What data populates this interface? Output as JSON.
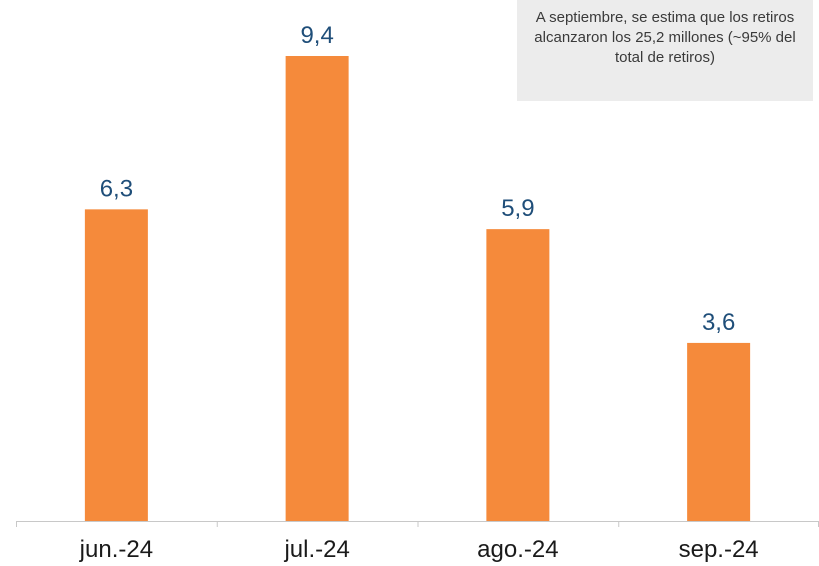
{
  "chart_data": {
    "type": "bar",
    "categories": [
      "jun.-24",
      "jul.-24",
      "ago.-24",
      "sep.-24"
    ],
    "values": [
      6.3,
      9.4,
      5.9,
      3.6
    ],
    "value_labels": [
      "6,3",
      "9,4",
      "5,9",
      "3,6"
    ],
    "ylim": [
      0,
      10
    ],
    "grid": false,
    "legend": "none",
    "annotation": "A septiembre, se estima que los retiros alcanzaron los 25,2 millones (~95% del total de retiros)"
  },
  "colors": {
    "bar": "#f58a3b",
    "data_label": "#1f4e79",
    "tick_label": "#1a1a1a",
    "axis": "#c8c8c8",
    "annotation_bg": "#ececec",
    "annotation_text": "#3a3a3a"
  }
}
